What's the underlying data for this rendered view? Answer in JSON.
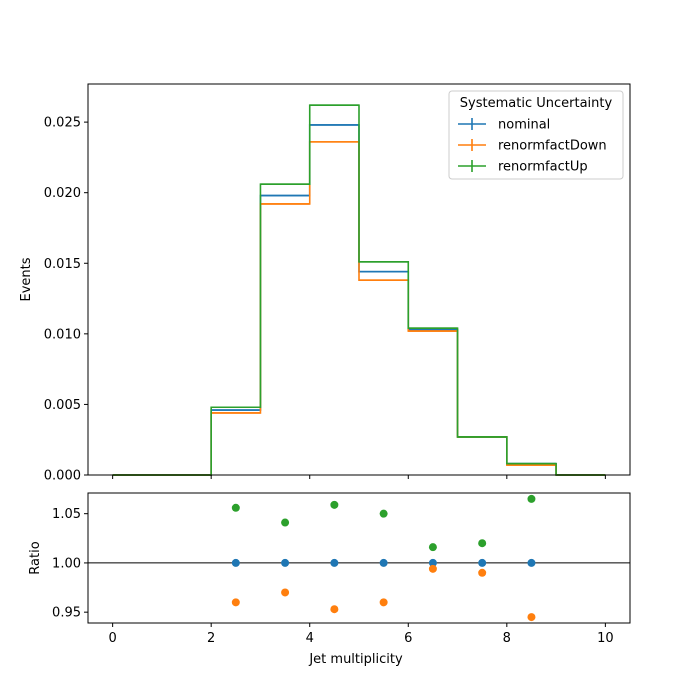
{
  "chart_data": [
    {
      "type": "step",
      "xlabel": "",
      "ylabel": "Events",
      "xlim": [
        -0.5,
        10.5
      ],
      "ylim": [
        0,
        0.0277
      ],
      "xticks": [
        0,
        2,
        4,
        6,
        8,
        10
      ],
      "xtick_labels": [
        "",
        "",
        "",
        "",
        "",
        ""
      ],
      "yticks": [
        0.0,
        0.005,
        0.01,
        0.015,
        0.02,
        0.025
      ],
      "ytick_labels": [
        "0.000",
        "0.005",
        "0.010",
        "0.015",
        "0.020",
        "0.025"
      ],
      "bin_edges": [
        0,
        1,
        2,
        3,
        4,
        5,
        6,
        7,
        8,
        9,
        10
      ],
      "legend": {
        "title": "Systematic Uncertainty",
        "position": "top-right"
      },
      "series": [
        {
          "name": "nominal",
          "color": "#1f77b4",
          "values": [
            0,
            0,
            0.0046,
            0.0198,
            0.0248,
            0.0144,
            0.0103,
            0.0027,
            0.0008,
            0
          ]
        },
        {
          "name": "renormfactDown",
          "color": "#ff7f0e",
          "values": [
            0,
            0,
            0.0044,
            0.0192,
            0.0236,
            0.0138,
            0.0102,
            0.0027,
            0.0007,
            0
          ]
        },
        {
          "name": "renormfactUp",
          "color": "#2ca02c",
          "values": [
            0,
            0,
            0.0048,
            0.0206,
            0.0262,
            0.0151,
            0.0104,
            0.0027,
            0.0008,
            0
          ]
        }
      ]
    },
    {
      "type": "scatter",
      "xlabel": "Jet multiplicity",
      "ylabel": "Ratio",
      "xlim": [
        -0.5,
        10.5
      ],
      "ylim": [
        0.939,
        1.071
      ],
      "xticks": [
        0,
        2,
        4,
        6,
        8,
        10
      ],
      "xtick_labels": [
        "0",
        "2",
        "4",
        "6",
        "8",
        "10"
      ],
      "yticks": [
        0.95,
        1.0,
        1.05
      ],
      "ytick_labels": [
        "0.95",
        "1.00",
        "1.05"
      ],
      "reference_line": 1.0,
      "x": [
        2.5,
        3.5,
        4.5,
        5.5,
        6.5,
        7.5,
        8.5
      ],
      "series": [
        {
          "name": "nominal",
          "color": "#1f77b4",
          "values": [
            1.0,
            1.0,
            1.0,
            1.0,
            1.0,
            1.0,
            1.0
          ]
        },
        {
          "name": "renormfactDown",
          "color": "#ff7f0e",
          "values": [
            0.96,
            0.97,
            0.953,
            0.96,
            0.994,
            0.99,
            0.945
          ]
        },
        {
          "name": "renormfactUp",
          "color": "#2ca02c",
          "values": [
            1.056,
            1.041,
            1.059,
            1.05,
            1.016,
            1.02,
            1.065
          ]
        }
      ]
    }
  ]
}
